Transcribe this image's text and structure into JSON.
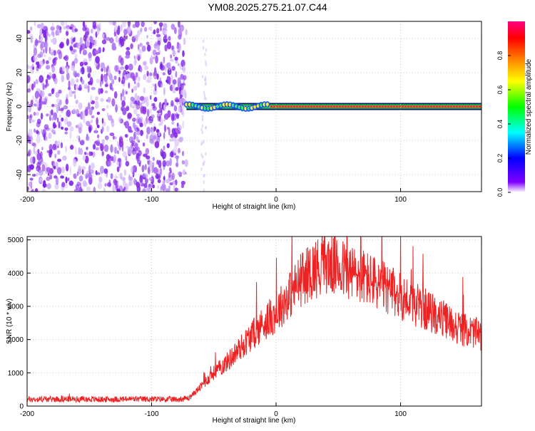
{
  "title": "YM08.2025.275.21.07.C44",
  "chart_data": [
    {
      "type": "heatmap",
      "xlabel": "Height of straight line (km)",
      "ylabel": "Frequency (Hz)",
      "xlim": [
        -200,
        165
      ],
      "ylim": [
        -50,
        50
      ],
      "x_ticks": [
        "-200",
        "-100",
        "0",
        "100"
      ],
      "x_tick_values": [
        -200,
        -100,
        0,
        100
      ],
      "y_ticks": [
        "-40",
        "-20",
        "0",
        "20",
        "40"
      ],
      "y_tick_values": [
        -40,
        -20,
        0,
        20,
        40
      ],
      "colorbar": {
        "label": "Normalized spectral amplitude",
        "range": [
          0,
          1
        ],
        "ticks": [
          "0.0",
          "0.2",
          "0.4",
          "0.6",
          "0.8"
        ],
        "tick_values": [
          0,
          0.2,
          0.4,
          0.6,
          0.8
        ],
        "colors": [
          "#ffffff",
          "#8000ff",
          "#0000ff",
          "#00ffff",
          "#00ff00",
          "#ffff00",
          "#ff8000",
          "#ff0000",
          "#ff0080"
        ]
      },
      "noise_region": {
        "x_range": [
          -200,
          -72
        ],
        "level": 0.1
      },
      "signal_band": {
        "x_start": -72,
        "x_end": 165,
        "freq_hz": 0,
        "peak_level": 0.85
      },
      "grid": true
    },
    {
      "type": "line",
      "xlabel": "Height of straight line (km)",
      "ylabel": "SNR (10 * v/v)",
      "xlim": [
        -200,
        165
      ],
      "ylim": [
        0,
        5100
      ],
      "x_ticks": [
        "-200",
        "-100",
        "0",
        "100"
      ],
      "x_tick_values": [
        -200,
        -100,
        0,
        100
      ],
      "y_ticks": [
        "0",
        "1000",
        "2000",
        "3000",
        "4000",
        "5000"
      ],
      "y_tick_values": [
        0,
        1000,
        2000,
        3000,
        4000,
        5000
      ],
      "series": [
        {
          "color": "#ee2222",
          "x": [
            -200,
            -180,
            -160,
            -140,
            -120,
            -100,
            -80,
            -70,
            -60,
            -50,
            -40,
            -30,
            -20,
            -10,
            0,
            10,
            20,
            30,
            40,
            50,
            60,
            70,
            80,
            90,
            100,
            110,
            120,
            130,
            140,
            150,
            160,
            165
          ],
          "y": [
            200,
            210,
            210,
            200,
            210,
            210,
            200,
            240,
            600,
            1000,
            1300,
            1700,
            2100,
            2500,
            2800,
            3300,
            3800,
            4100,
            4300,
            4200,
            4000,
            3900,
            3700,
            3500,
            3300,
            3100,
            2900,
            2700,
            2500,
            2300,
            2200,
            2100
          ]
        }
      ],
      "grid": true
    }
  ]
}
